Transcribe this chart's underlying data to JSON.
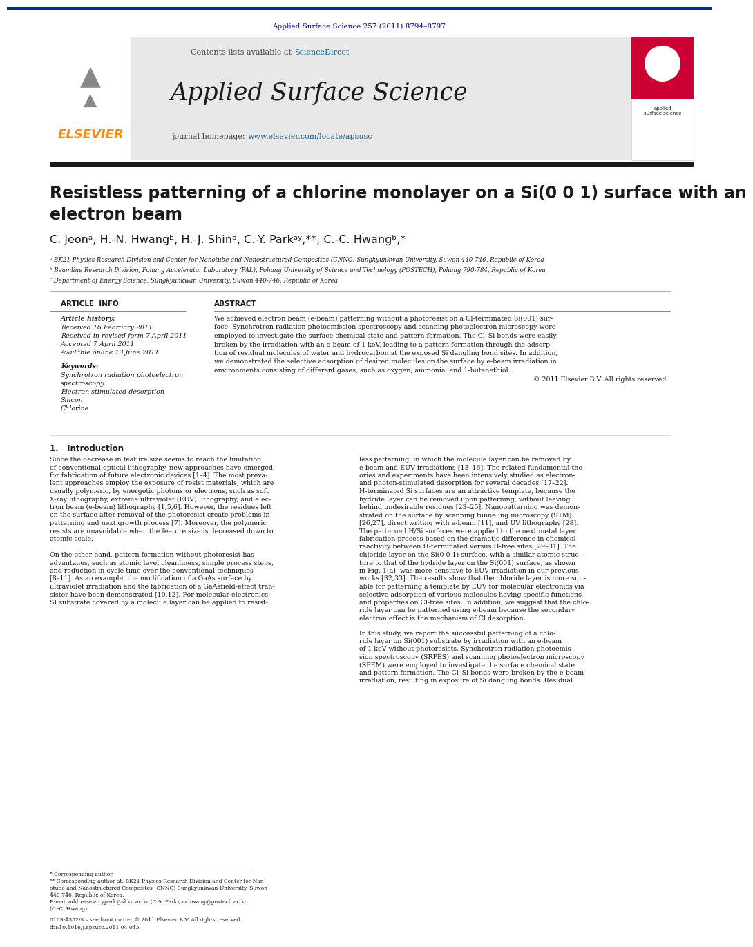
{
  "page_bg": "#ffffff",
  "top_bar_color": "#003087",
  "journal_bar_bg": "#e8e8e8",
  "dark_bar_color": "#1a1a1a",
  "citation_text": "Applied Surface Science 257 (2011) 8794–8797",
  "citation_color": "#00008B",
  "contents_text": "Contents lists available at ",
  "sciencedirect_text": "ScienceDirect",
  "sciencedirect_color": "#1a6496",
  "journal_name": "Applied Surface Science",
  "journal_homepage_text": "journal homepage: ",
  "journal_url": "www.elsevier.com/locate/apsusc",
  "journal_url_color": "#1a6496",
  "article_title": "Resistless patterning of a chlorine monolayer on a Si(0 0 1) surface with an\nelectron beam",
  "author_line": "C. Jeonᵃ, H.-N. Hwangᵇ, H.-J. Shinᵇ, C.-Y. Parkᵃʸ,**, C.-C. Hwangᵇ,*",
  "affil_a": "ᵃ BK21 Physics Research Division and Center for Nanotube and Nanostructured Composites (CNNC) Sungkyunkwan University, Suwon 440-746, Republic of Korea",
  "affil_b": "ᵇ Beamline Research Division, Pohang Accelerator Laboratory (PAL), Pohang University of Science and Technology (POSTECH), Pohang 790-784, Republic of Korea",
  "affil_c": "ᶜ Department of Energy Science, Sungkyunkwan University, Suwon 440-746, Republic of Korea",
  "article_info_title": "ARTICLE  INFO",
  "abstract_title": "ABSTRACT",
  "article_history_label": "Article history:",
  "received_text": "Received 16 February 2011",
  "revised_text": "Received in revised form 7 April 2011",
  "accepted_text": "Accepted 7 April 2011",
  "available_text": "Available online 13 June 2011",
  "keywords_label": "Keywords:",
  "keyword1": "Synchrotron radiation photoelectron",
  "keyword2": "spectroscopy",
  "keyword3": "Electron stimulated desorption",
  "keyword4": "Silicon",
  "keyword5": "Chlorine",
  "abstract_lines": [
    "We achieved electron beam (e-beam) patterning without a photoresist on a Cl-terminated Si(001) sur-",
    "face. Synchrotron radiation photoemission spectroscopy and scanning photoelectron microscopy were",
    "employed to investigate the surface chemical state and pattern formation. The Cl–Si bonds were easily",
    "broken by the irradiation with an e-beam of 1 keV, leading to a pattern formation through the adsorp-",
    "tion of residual molecules of water and hydrocarbon at the exposed Si dangling bond sites. In addition,",
    "we demonstrated the selective adsorption of desired molecules on the surface by e-beam irradiation in",
    "environments consisting of different gases, such as oxygen, ammonia, and 1-butanethiol.",
    "© 2011 Elsevier B.V. All rights reserved."
  ],
  "intro_title": "1.   Introduction",
  "left_intro": [
    "Since the decrease in feature size seems to reach the limitation",
    "of conventional optical lithography, new approaches have emerged",
    "for fabrication of future electronic devices [1–4]. The most preva-",
    "lent approaches employ the exposure of resist materials, which are",
    "usually polymeric, by energetic photons or electrons, such as soft",
    "X-ray lithography, extreme ultraviolet (EUV) lithography, and elec-",
    "tron beam (e-beam) lithography [1,5,6]. However, the residues left",
    "on the surface after removal of the photoresist create problems in",
    "patterning and next growth process [7]. Moreover, the polymeric",
    "resists are unavoidable when the feature size is decreased down to",
    "atomic scale.",
    "",
    "On the other hand, pattern formation without photoresist has",
    "advantages, such as atomic level cleanliness, simple process steps,",
    "and reduction in cycle time over the conventional techniques",
    "[8–11]. As an example, the modification of a GaAs surface by",
    "ultraviolet irradiation and the fabrication of a GaAsfield-effect tran-",
    "sistor have been demonstrated [10,12]. For molecular electronics,",
    "SI substrate covered by a molecule layer can be applied to resist-"
  ],
  "right_intro": [
    "less patterning, in which the molecule layer can be removed by",
    "e-beam and EUV irradiations [13–16]. The related fundamental the-",
    "ories and experiments have been intensively studied as electron-",
    "and photon-stimulated desorption for several decades [17–22].",
    "H-terminated Si surfaces are an attractive template, because the",
    "hydride layer can be removed upon patterning, without leaving",
    "behind undesirable residues [23–25]. Nanopatterning was demon-",
    "strated on the surface by scanning tunneling microscopy (STM)",
    "[26,27], direct writing with e-beam [11], and UV lithography [28].",
    "The patterned H/Si surfaces were applied to the next metal layer",
    "fabrication process based on the dramatic difference in chemical",
    "reactivity between H-terminated versus H-free sites [29–31]. The",
    "chloride layer on the Si(0 0 1) surface, with a similar atomic struc-",
    "ture to that of the hydride layer on the Si(001) surface, as shown",
    "in Fig. 1(a), was more sensitive to EUV irradiation in our previous",
    "works [32,33]. The results show that the chloride layer is more suit-",
    "able for patterning a template by EUV for molecular electronics via",
    "selective adsorption of various molecules having specific functions",
    "and properties on Cl-free sites. In addition, we suggest that the chlo-",
    "ride layer can be patterned using e-beam because the secondary",
    "electron effect is the mechanism of Cl desorption."
  ],
  "right_intro2": [
    "In this study, we report the successful patterning of a chlo-",
    "ride layer on Si(001) substrate by irradiation with an e-beam",
    "of 1 keV without photoresists. Synchrotron radiation photoemis-",
    "sion spectroscopy (SRPES) and scanning photoelectron microscopy",
    "(SPEM) were employed to investigate the surface chemical state",
    "and pattern formation. The Cl–Si bonds were broken by the e-beam",
    "irradiation, resulting in exposure of Si dangling bonds. Residual"
  ],
  "footnote1": "* Corresponding author.",
  "footnote2": "** Corresponding author at: BK21 Physics Research Division and Center for Nan-",
  "footnote2b": "otube and Nanostructured Composites (CNNC) Sungkyunkwan University, Suwon",
  "footnote2c": "440-746, Republic of Korea.",
  "footnote3": "E-mail addresses: cypark@skku.ac.kr (C.-Y. Park), cchwang@postech.ac.kr",
  "footnote3b": "(C.-C. Hwang).",
  "issn_text": "0169-4332/$ – see front matter © 2011 Elsevier B.V. All rights reserved.",
  "doi_text": "doi:10.1016/j.apsusc.2011.04.043",
  "elsevier_color": "#ff8c00",
  "elsevier_text": "ELSEVIER"
}
